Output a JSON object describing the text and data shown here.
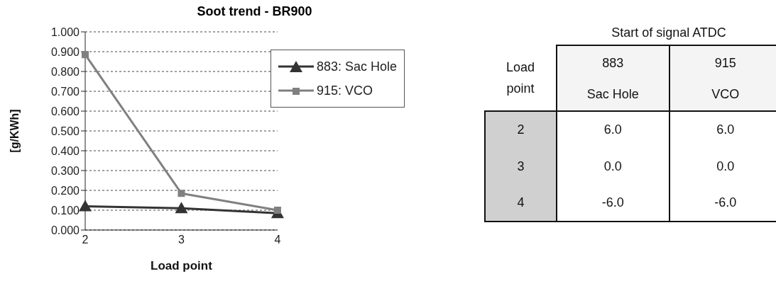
{
  "chart_data": [
    {
      "type": "line",
      "title": "Soot trend - BR900",
      "xlabel": "Load point",
      "ylabel": "[g/KWh]",
      "categories": [
        "2",
        "3",
        "4"
      ],
      "series": [
        {
          "name": "883: Sac Hole",
          "color": "#333333",
          "marker": "triangle",
          "values": [
            0.12,
            0.11,
            0.085
          ]
        },
        {
          "name": "915: VCO",
          "color": "#808080",
          "marker": "square",
          "values": [
            0.885,
            0.185,
            0.1
          ]
        }
      ],
      "ylim": [
        0,
        1
      ],
      "yticks": [
        {
          "value": 0,
          "label": "0.000"
        },
        {
          "value": 0.1,
          "label": "0.100"
        },
        {
          "value": 0.2,
          "label": "0.200"
        },
        {
          "value": 0.3,
          "label": "0.300"
        },
        {
          "value": 0.4,
          "label": "0.400"
        },
        {
          "value": 0.5,
          "label": "0.500"
        },
        {
          "value": 0.6,
          "label": "0.600"
        },
        {
          "value": 0.7,
          "label": "0.700"
        },
        {
          "value": 0.8,
          "label": "0.800"
        },
        {
          "value": 0.9,
          "label": "0.900"
        },
        {
          "value": 1,
          "label": "1.000"
        }
      ],
      "grid": "y",
      "legend": "top right",
      "line_style": "solid"
    },
    {
      "type": "other",
      "title": "Start of signal ATDC",
      "xlabel": "Load point",
      "categories": [
        "883",
        "915"
      ],
      "annotations": [
        "Sac Hole",
        "VCO"
      ],
      "y_categories": [
        "2",
        "3",
        "4"
      ],
      "cell_labels": [
        [
          "6.0",
          "6.0"
        ],
        [
          "0.0",
          "0.0"
        ],
        [
          "-6.0",
          "-6.0"
        ]
      ]
    }
  ]
}
